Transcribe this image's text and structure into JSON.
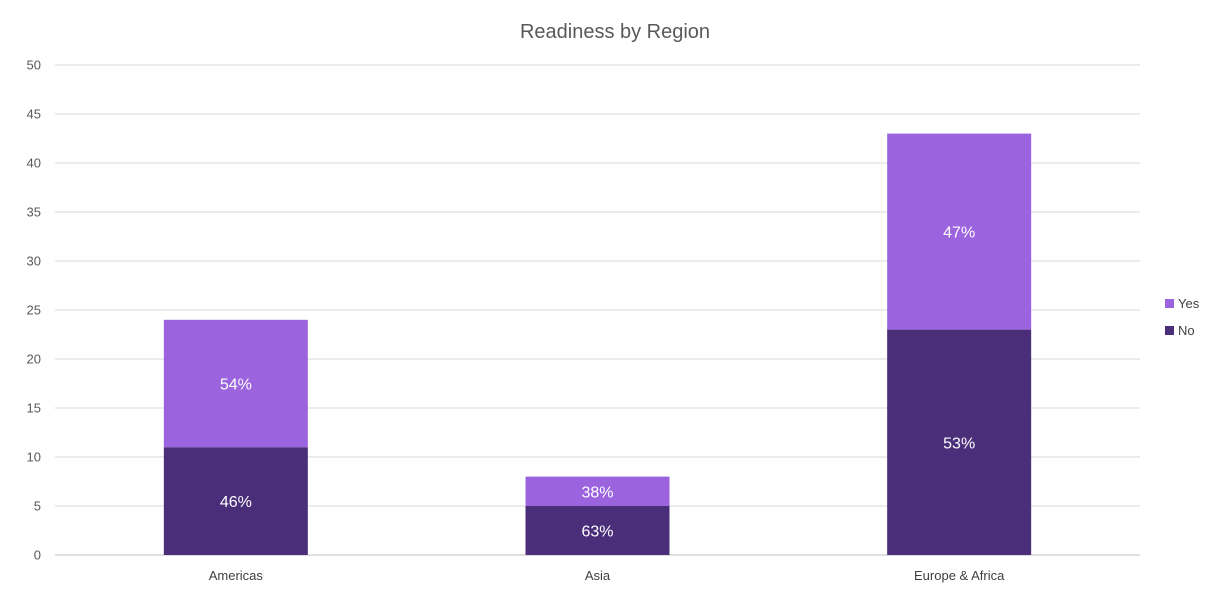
{
  "chart_data": {
    "type": "bar",
    "stacked": true,
    "title": "Readiness by Region",
    "categories": [
      "Americas",
      "Asia",
      "Europe & Africa"
    ],
    "series": [
      {
        "name": "No",
        "color": "#4b2e7a",
        "values": [
          11,
          5,
          23
        ],
        "labels": [
          "46%",
          "63%",
          "53%"
        ]
      },
      {
        "name": "Yes",
        "color": "#9b64de",
        "values": [
          13,
          3,
          20
        ],
        "labels": [
          "54%",
          "38%",
          "47%"
        ]
      }
    ],
    "ylim": [
      0,
      50
    ],
    "yticks": [
      0,
      5,
      10,
      15,
      20,
      25,
      30,
      35,
      40,
      45,
      50
    ],
    "grid": true,
    "legend": {
      "placement": "right",
      "order": [
        "Yes",
        "No"
      ]
    }
  }
}
